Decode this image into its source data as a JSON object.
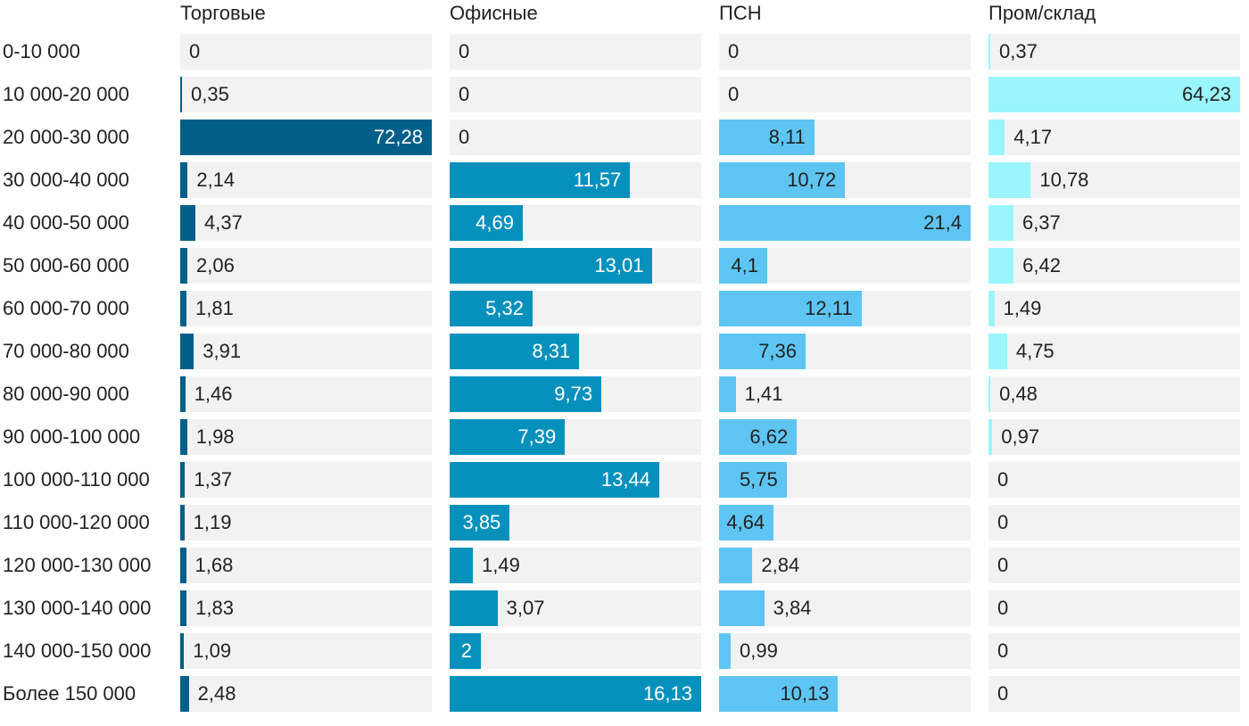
{
  "chart_data": {
    "type": "bar",
    "orientation": "horizontal",
    "layout": "small-multiples",
    "categories": [
      "0-10 000",
      "10 000-20 000",
      "20 000-30 000",
      "30 000-40 000",
      "40 000-50 000",
      "50 000-60 000",
      "60 000-70 000",
      "70 000-80 000",
      "80 000-90 000",
      "90 000-100 000",
      "100 000-110 000",
      "110 000-120 000",
      "120 000-130 000",
      "130 000-140 000",
      "140 000-150 000",
      "Более 150 000"
    ],
    "series": [
      {
        "name": "Торговые",
        "color": "#005f8a",
        "max": 72.28,
        "values": [
          0,
          0.35,
          72.28,
          2.14,
          4.37,
          2.06,
          1.81,
          3.91,
          1.46,
          1.98,
          1.37,
          1.19,
          1.68,
          1.83,
          1.09,
          2.48
        ],
        "labels": [
          "0",
          "0,35",
          "72,28",
          "2,14",
          "4,37",
          "2,06",
          "1,81",
          "3,91",
          "1,46",
          "1,98",
          "1,37",
          "1,19",
          "1,68",
          "1,83",
          "1,09",
          "2,48"
        ]
      },
      {
        "name": "Офисные",
        "color": "#0691bd",
        "max": 16.13,
        "values": [
          0,
          0,
          0,
          11.57,
          4.69,
          13.01,
          5.32,
          8.31,
          9.73,
          7.39,
          13.44,
          3.85,
          1.49,
          3.07,
          2,
          16.13
        ],
        "labels": [
          "0",
          "0",
          "0",
          "11,57",
          "4,69",
          "13,01",
          "5,32",
          "8,31",
          "9,73",
          "7,39",
          "13,44",
          "3,85",
          "1,49",
          "3,07",
          "2",
          "16,13"
        ]
      },
      {
        "name": "ПСН",
        "color": "#5ec5f2",
        "max": 21.4,
        "values": [
          0,
          0,
          8.11,
          10.72,
          21.4,
          4.1,
          12.11,
          7.36,
          1.41,
          6.62,
          5.75,
          4.64,
          2.84,
          3.84,
          0.99,
          10.13
        ],
        "labels": [
          "0",
          "0",
          "8,11",
          "10,72",
          "21,4",
          "4,1",
          "12,11",
          "7,36",
          "1,41",
          "6,62",
          "5,75",
          "4,64",
          "2,84",
          "3,84",
          "0,99",
          "10,13"
        ]
      },
      {
        "name": "Пром/склад",
        "color": "#9af5fc",
        "max": 64.23,
        "values": [
          0.37,
          64.23,
          4.17,
          10.78,
          6.37,
          6.42,
          1.49,
          4.75,
          0.48,
          0.97,
          0,
          0,
          0,
          0,
          0,
          0
        ],
        "labels": [
          "0,37",
          "64,23",
          "4,17",
          "10,78",
          "6,37",
          "6,42",
          "1,49",
          "4,75",
          "0,48",
          "0,97",
          "0",
          "0",
          "0",
          "0",
          "0",
          "0"
        ]
      }
    ],
    "label_text_inside_color": {
      "Торговые": "#ffffff",
      "Офисные": "#ffffff",
      "ПСН": "#222222",
      "Пром/склад": "#222222"
    }
  }
}
